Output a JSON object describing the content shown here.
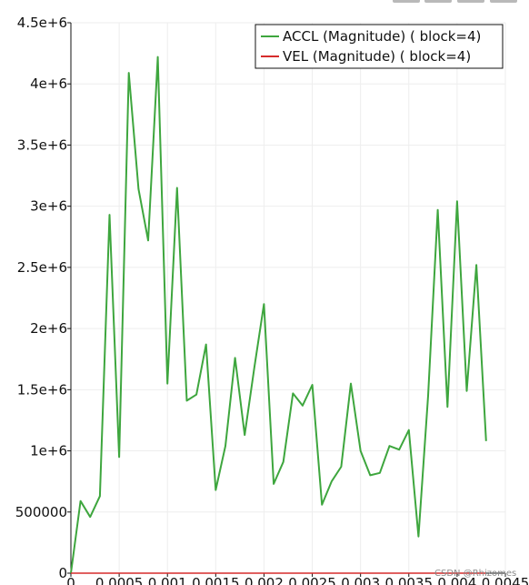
{
  "window": {
    "toolbar_stubs": 4
  },
  "chart_data": {
    "type": "line",
    "title": "",
    "xlabel": "",
    "ylabel": "",
    "xlim": [
      0,
      0.0045
    ],
    "ylim": [
      0,
      4500000
    ],
    "grid": true,
    "legend_position": "top-right",
    "x_ticks": [
      "0",
      "0.0005",
      "0.001",
      "0.0015",
      "0.002",
      "0.0025",
      "0.003",
      "0.0035",
      "0.004",
      "0.0045"
    ],
    "y_ticks": [
      "0",
      "500000",
      "1e+6",
      "1.5e+6",
      "2e+6",
      "2.5e+6",
      "3e+6",
      "3.5e+6",
      "4e+6",
      "4.5e+6"
    ],
    "series": [
      {
        "name": "ACCL (Magnitude) ( block=4)",
        "color": "#3ea63e",
        "x": [
          0,
          0.0001,
          0.0002,
          0.0003,
          0.0004,
          0.0005,
          0.0006,
          0.0007,
          0.0008,
          0.0009,
          0.001,
          0.0011,
          0.0012,
          0.0013,
          0.0014,
          0.0015,
          0.0016,
          0.0017,
          0.0018,
          0.0019,
          0.002,
          0.0021,
          0.0022,
          0.0023,
          0.0024,
          0.0025,
          0.0026,
          0.0027,
          0.0028,
          0.0029,
          0.003,
          0.0031,
          0.0032,
          0.0033,
          0.0034,
          0.0035,
          0.0036,
          0.0037,
          0.0038,
          0.0039,
          0.004,
          0.0041,
          0.0042,
          0.0043
        ],
        "values": [
          0,
          590000,
          460000,
          630000,
          2930000,
          950000,
          4090000,
          3140000,
          2720000,
          4220000,
          1550000,
          3150000,
          1410000,
          1460000,
          1870000,
          680000,
          1040000,
          1760000,
          1130000,
          1680000,
          2200000,
          730000,
          910000,
          1470000,
          1370000,
          1540000,
          560000,
          750000,
          870000,
          1550000,
          1000000,
          800000,
          820000,
          1040000,
          1010000,
          1170000,
          300000,
          1450000,
          2970000,
          1360000,
          3040000,
          1490000,
          2520000,
          1080000
        ]
      },
      {
        "name": "VEL (Magnitude) ( block=4)",
        "color": "#d62c2c",
        "x": [
          0,
          0.0043
        ],
        "values": [
          0,
          0
        ]
      }
    ],
    "watermark": "CSDN @Rhizomes"
  }
}
